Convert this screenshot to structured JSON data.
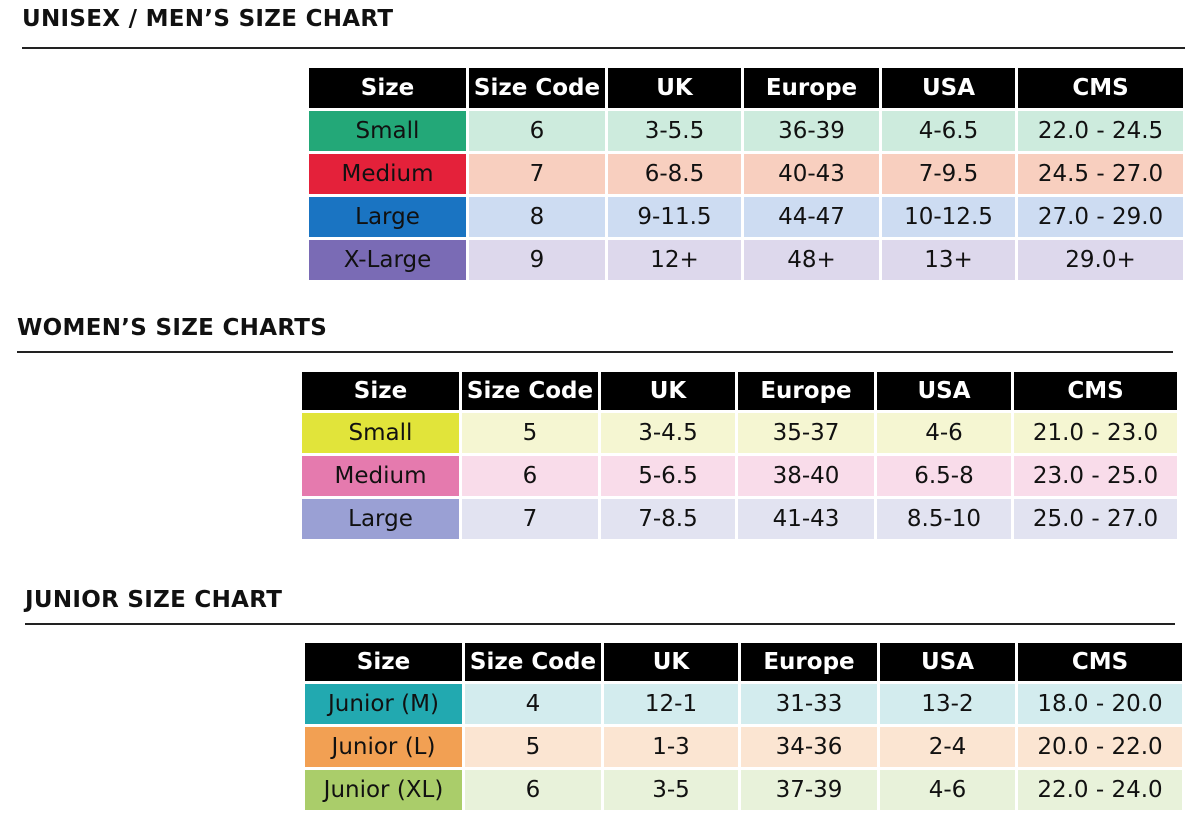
{
  "headers": [
    "Size",
    "Size Code",
    "UK",
    "Europe",
    "USA",
    "CMS"
  ],
  "sections": [
    {
      "title": "UNISEX / MEN’S SIZE CHART",
      "rows": [
        {
          "cells": [
            "Small",
            "6",
            "3-5.5",
            "36-39",
            "4-6.5",
            "22.0 - 24.5"
          ],
          "swatch": "#23a878",
          "tint": "#cdebdd"
        },
        {
          "cells": [
            "Medium",
            "7",
            "6-8.5",
            "40-43",
            "7-9.5",
            "24.5 - 27.0"
          ],
          "swatch": "#e4213a",
          "tint": "#f8cfbf"
        },
        {
          "cells": [
            "Large",
            "8",
            "9-11.5",
            "44-47",
            "10-12.5",
            "27.0 - 29.0"
          ],
          "swatch": "#1a74c2",
          "tint": "#cddcf2"
        },
        {
          "cells": [
            "X-Large",
            "9",
            "12+",
            "48+",
            "13+",
            "29.0+"
          ],
          "swatch": "#7a6bb5",
          "tint": "#ddd8ec"
        }
      ]
    },
    {
      "title": "WOMEN’S SIZE CHARTS",
      "rows": [
        {
          "cells": [
            "Small",
            "5",
            "3-4.5",
            "35-37",
            "4-6",
            "21.0 - 23.0"
          ],
          "swatch": "#e1e43a",
          "tint": "#f5f6d2"
        },
        {
          "cells": [
            "Medium",
            "6",
            "5-6.5",
            "38-40",
            "6.5-8",
            "23.0 - 25.0"
          ],
          "swatch": "#e57aae",
          "tint": "#f9dcea"
        },
        {
          "cells": [
            "Large",
            "7",
            "7-8.5",
            "41-43",
            "8.5-10",
            "25.0 - 27.0"
          ],
          "swatch": "#9aa0d4",
          "tint": "#e2e3f1"
        }
      ]
    },
    {
      "title": "JUNIOR SIZE CHART",
      "rows": [
        {
          "cells": [
            "Junior (M)",
            "4",
            "12-1",
            "31-33",
            "13-2",
            "18.0 - 20.0"
          ],
          "swatch": "#22a9b0",
          "tint": "#d3ecee"
        },
        {
          "cells": [
            "Junior (L)",
            "5",
            "1-3",
            "34-36",
            "2-4",
            "20.0 - 22.0"
          ],
          "swatch": "#f2a053",
          "tint": "#fbe5d2"
        },
        {
          "cells": [
            "Junior (XL)",
            "6",
            "3-5",
            "37-39",
            "4-6",
            "22.0 - 24.0"
          ],
          "swatch": "#aacd6a",
          "tint": "#e8f2da"
        }
      ]
    }
  ]
}
